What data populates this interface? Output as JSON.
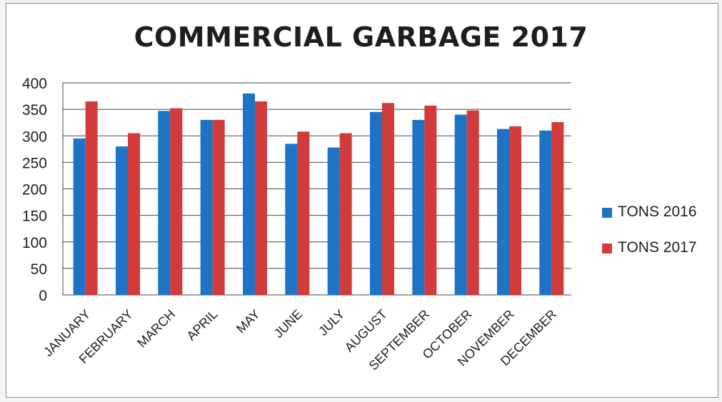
{
  "chart_data": {
    "type": "bar",
    "title": "COMMERCIAL  GARBAGE 2017",
    "xlabel": "",
    "ylabel": "",
    "ylim": [
      0,
      400
    ],
    "yticks": [
      0,
      50,
      100,
      150,
      200,
      250,
      300,
      350,
      400
    ],
    "grid": true,
    "legend_position": "right",
    "categories": [
      "JANUARY",
      "FEBRUARY",
      "MARCH",
      "APRIL",
      "MAY",
      "JUNE",
      "JULY",
      "AUGUST",
      "SEPTEMBER",
      "OCTOBER",
      "NOVEMBER",
      "DECEMBER"
    ],
    "series": [
      {
        "name": "TONS 2016",
        "color": "#1f73c4",
        "values": [
          295,
          280,
          347,
          330,
          380,
          285,
          278,
          345,
          330,
          340,
          313,
          310
        ]
      },
      {
        "name": "TONS 2017",
        "color": "#d13b3b",
        "values": [
          365,
          305,
          352,
          330,
          365,
          308,
          305,
          362,
          357,
          348,
          318,
          326
        ]
      }
    ]
  }
}
